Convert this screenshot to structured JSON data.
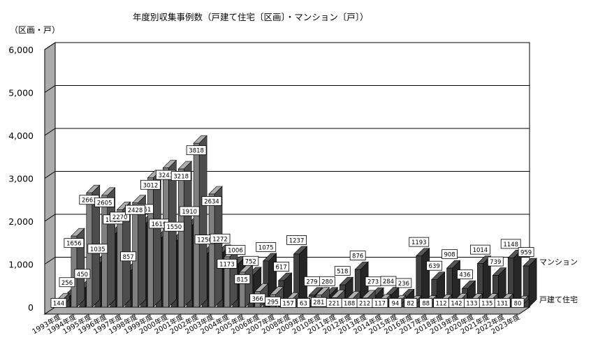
{
  "chart_data": {
    "type": "bar",
    "title": "年度別収集事例数（戸建て住宅〔区画〕・マンション〔戸〕）",
    "ylabel": "（区画・戸）",
    "xlabel": "",
    "ylim": [
      0,
      6000
    ],
    "yticks": [
      "0",
      "1,000",
      "2,000",
      "3,000",
      "4,000",
      "5,000",
      "6,000"
    ],
    "grid": true,
    "categories": [
      "1993年度",
      "1994年度",
      "1995年度",
      "1996年度",
      "1997年度",
      "1998年度",
      "1999年度",
      "2000年度",
      "2001年度",
      "2002年度",
      "2003年度",
      "2004年度",
      "2005年度",
      "2006年度",
      "2007年度",
      "2008年度",
      "2009年度",
      "2010年度",
      "2011年度",
      "2012年度",
      "2013年度",
      "2014年度",
      "2015年度",
      "2016年度",
      "2017年度",
      "2018年度",
      "2019年度",
      "2020年度",
      "2021年度",
      "2022年度",
      "2023年度"
    ],
    "series": [
      {
        "name": "戸建て住宅",
        "color": "#808080",
        "values": [
          144,
          1656,
          2663,
          2605,
          2270,
          2428,
          3012,
          3243,
          3218,
          3818,
          2634,
          1173,
          815,
          366,
          295,
          157,
          63,
          281,
          221,
          188,
          212,
          117,
          94,
          82,
          88,
          112,
          142,
          133,
          135,
          131,
          80
        ]
      },
      {
        "name": "マンション",
        "color": "#404040",
        "values": [
          256,
          450,
          1035,
          1718,
          857,
          1961,
          1619,
          1550,
          1910,
          1250,
          1272,
          1006,
          752,
          1075,
          617,
          1237,
          279,
          280,
          518,
          876,
          273,
          284,
          236,
          1193,
          639,
          908,
          436,
          1014,
          739,
          1148,
          959
        ]
      }
    ]
  }
}
